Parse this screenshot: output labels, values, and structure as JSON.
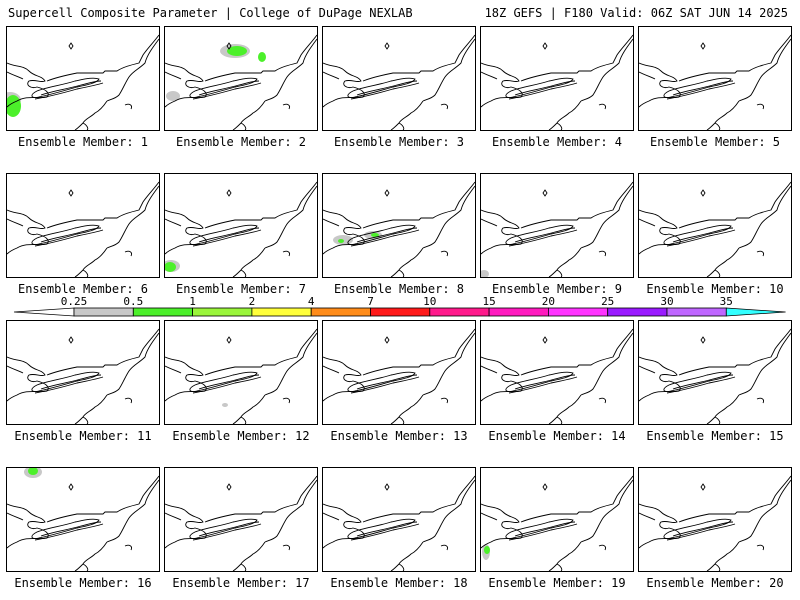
{
  "header": {
    "left": "Supercell Composite Parameter | College of DuPage NEXLAB",
    "right": "18Z GEFS | F180 Valid: 06Z SAT JUN 14 2025"
  },
  "legend": {
    "ticks": [
      "0.25",
      "0.5",
      "1",
      "2",
      "4",
      "7",
      "10",
      "15",
      "20",
      "25",
      "30",
      "35"
    ],
    "colors": [
      "#c8c8c8",
      "#4cf02a",
      "#9af53a",
      "#ffff3a",
      "#ff8c1a",
      "#ff1a1a",
      "#ff1a8c",
      "#ff1abf",
      "#ff33ff",
      "#9a1aff",
      "#bf66ff",
      "#33ffff"
    ]
  },
  "panels": [
    {
      "label": "Ensemble Member: 1",
      "spots": [
        {
          "x": 3,
          "y": 73,
          "rx": 11,
          "ry": 8,
          "c": "#c8c8c8"
        },
        {
          "x": 6,
          "y": 79,
          "rx": 8,
          "ry": 11,
          "c": "#4cf02a"
        }
      ]
    },
    {
      "label": "Ensemble Member: 2",
      "spots": [
        {
          "x": 70,
          "y": 24,
          "rx": 15,
          "ry": 7,
          "c": "#c8c8c8"
        },
        {
          "x": 72,
          "y": 24,
          "rx": 10,
          "ry": 5,
          "c": "#4cf02a"
        },
        {
          "x": 97,
          "y": 30,
          "rx": 4,
          "ry": 5,
          "c": "#4cf02a"
        },
        {
          "x": 8,
          "y": 69,
          "rx": 7,
          "ry": 5,
          "c": "#c8c8c8"
        }
      ]
    },
    {
      "label": "Ensemble Member: 3",
      "spots": []
    },
    {
      "label": "Ensemble Member: 4",
      "spots": []
    },
    {
      "label": "Ensemble Member: 5",
      "spots": []
    },
    {
      "label": "Ensemble Member: 6",
      "spots": []
    },
    {
      "label": "Ensemble Member: 7",
      "spots": [
        {
          "x": 6,
          "y": 92,
          "rx": 9,
          "ry": 6,
          "c": "#c8c8c8"
        },
        {
          "x": 5,
          "y": 93,
          "rx": 6,
          "ry": 5,
          "c": "#4cf02a"
        }
      ]
    },
    {
      "label": "Ensemble Member: 8",
      "spots": [
        {
          "x": 20,
          "y": 66,
          "rx": 10,
          "ry": 5,
          "c": "#c8c8c8"
        },
        {
          "x": 50,
          "y": 61,
          "rx": 9,
          "ry": 4,
          "c": "#c8c8c8"
        },
        {
          "x": 52,
          "y": 61,
          "rx": 4,
          "ry": 2,
          "c": "#4cf02a"
        },
        {
          "x": 18,
          "y": 67,
          "rx": 3,
          "ry": 2,
          "c": "#4cf02a"
        }
      ]
    },
    {
      "label": "Ensemble Member: 9",
      "spots": [
        {
          "x": 3,
          "y": 100,
          "rx": 5,
          "ry": 4,
          "c": "#c8c8c8"
        }
      ]
    },
    {
      "label": "Ensemble Member: 10",
      "spots": []
    },
    {
      "label": "Ensemble Member: 11",
      "spots": []
    },
    {
      "label": "Ensemble Member: 12",
      "spots": [
        {
          "x": 60,
          "y": 84,
          "rx": 3,
          "ry": 2,
          "c": "#c8c8c8"
        }
      ]
    },
    {
      "label": "Ensemble Member: 13",
      "spots": []
    },
    {
      "label": "Ensemble Member: 14",
      "spots": []
    },
    {
      "label": "Ensemble Member: 15",
      "spots": []
    },
    {
      "label": "Ensemble Member: 16",
      "spots": [
        {
          "x": 26,
          "y": 4,
          "rx": 9,
          "ry": 6,
          "c": "#c8c8c8"
        },
        {
          "x": 26,
          "y": 3,
          "rx": 5,
          "ry": 4,
          "c": "#4cf02a"
        }
      ]
    },
    {
      "label": "Ensemble Member: 17",
      "spots": []
    },
    {
      "label": "Ensemble Member: 18",
      "spots": []
    },
    {
      "label": "Ensemble Member: 19",
      "spots": [
        {
          "x": 5,
          "y": 84,
          "rx": 4,
          "ry": 8,
          "c": "#c8c8c8"
        },
        {
          "x": 6,
          "y": 82,
          "rx": 3,
          "ry": 4,
          "c": "#4cf02a"
        }
      ]
    },
    {
      "label": "Ensemble Member: 20",
      "spots": []
    }
  ]
}
